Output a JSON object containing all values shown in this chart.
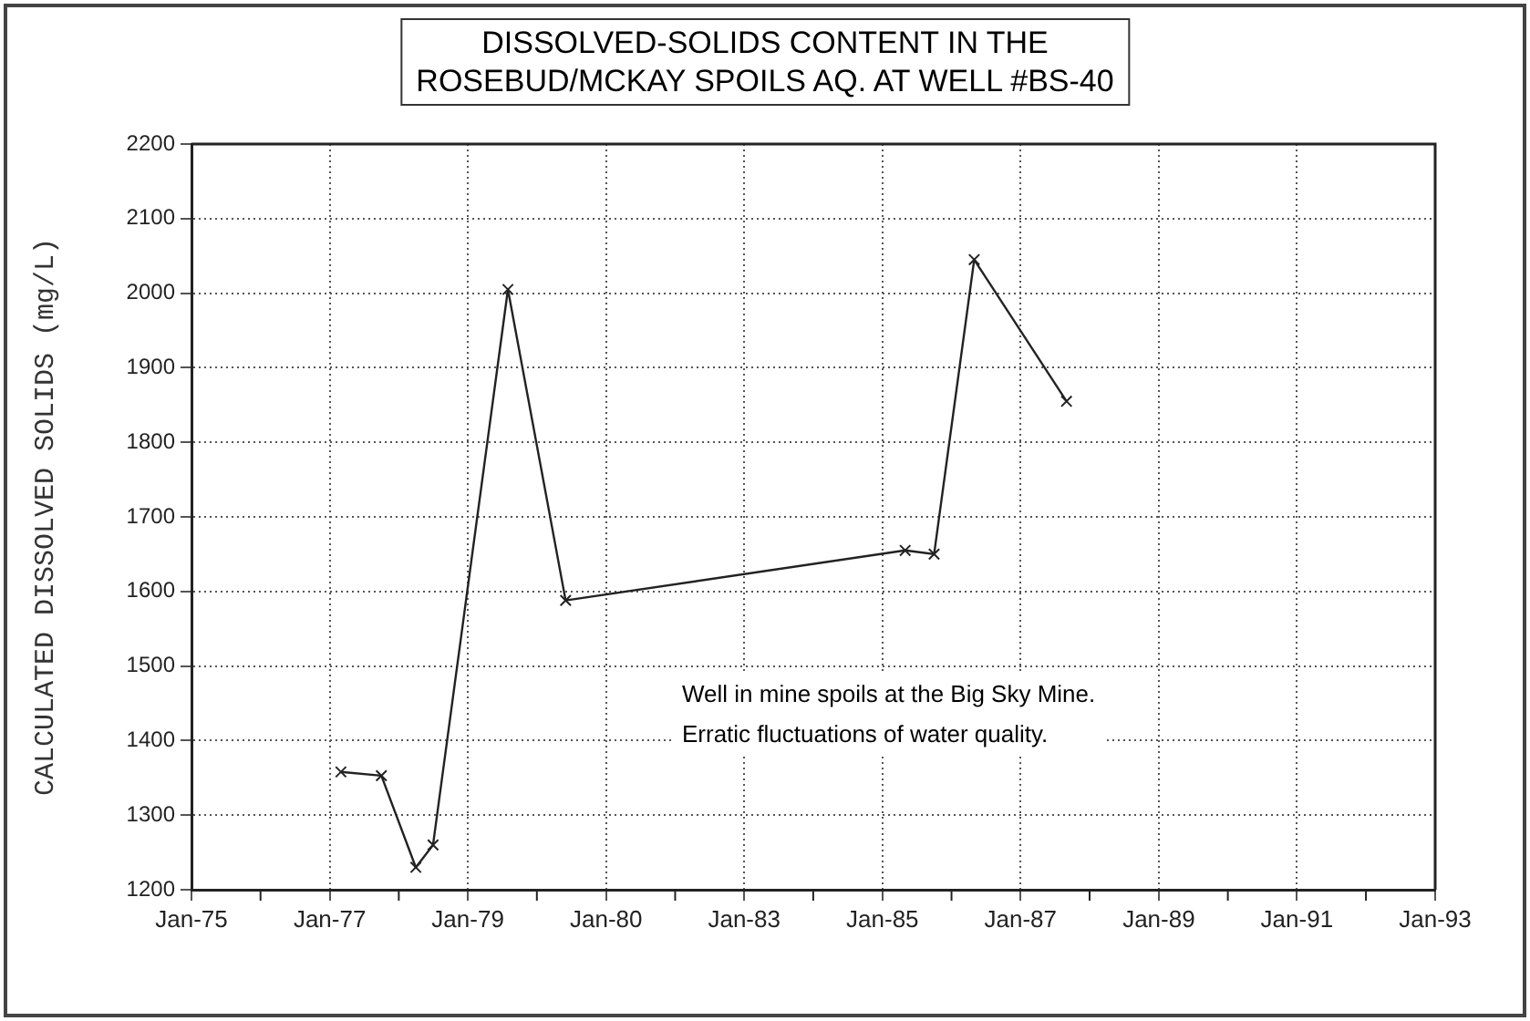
{
  "chart_data": {
    "type": "line",
    "title": "DISSOLVED-SOLIDS CONTENT IN THE\nROSEBUD/MCKAY SPOILS AQ. AT WELL #BS-40",
    "ylabel": "CALCULATED DISSOLVED SOLIDS (mg/L)",
    "x": [
      "1977-03",
      "1977-10",
      "1978-04",
      "1978-07",
      "1979-08",
      "1980-06",
      "1985-05",
      "1985-10",
      "1986-05",
      "1987-09"
    ],
    "series": [
      {
        "color": "#222222",
        "values": [
          1358,
          1353,
          1230,
          1260,
          2005,
          1588,
          1655,
          1650,
          2045,
          1855
        ]
      }
    ],
    "xlim": [
      "1975-01",
      "1993-01"
    ],
    "xticks": [
      {
        "value": "1975-01",
        "label": "Jan-75"
      },
      {
        "value": "1976-01",
        "label": null
      },
      {
        "value": "1977-01",
        "label": "Jan-77"
      },
      {
        "value": "1978-01",
        "label": null
      },
      {
        "value": "1979-01",
        "label": "Jan-79"
      },
      {
        "value": "1980-01",
        "label": null
      },
      {
        "value": "1981-01",
        "label": "Jan-80"
      },
      {
        "value": "1982-01",
        "label": null
      },
      {
        "value": "1983-01",
        "label": "Jan-83"
      },
      {
        "value": "1984-01",
        "label": null
      },
      {
        "value": "1985-01",
        "label": "Jan-85"
      },
      {
        "value": "1986-01",
        "label": null
      },
      {
        "value": "1987-01",
        "label": "Jan-87"
      },
      {
        "value": "1988-01",
        "label": null
      },
      {
        "value": "1989-01",
        "label": "Jan-89"
      },
      {
        "value": "1990-01",
        "label": null
      },
      {
        "value": "1991-01",
        "label": "Jan-91"
      },
      {
        "value": "1992-01",
        "label": null
      },
      {
        "value": "1993-01",
        "label": "Jan-93"
      }
    ],
    "ylim": [
      1200,
      2200
    ],
    "yticks": [
      1200,
      1300,
      1400,
      1500,
      1600,
      1700,
      1800,
      1900,
      2000,
      2100,
      2200
    ],
    "grid": true,
    "legend": false,
    "marker": "cross",
    "line_style": "solid",
    "annotations": [
      "Well in mine spoils at the Big Sky Mine.\nErratic fluctuations of water quality."
    ]
  }
}
